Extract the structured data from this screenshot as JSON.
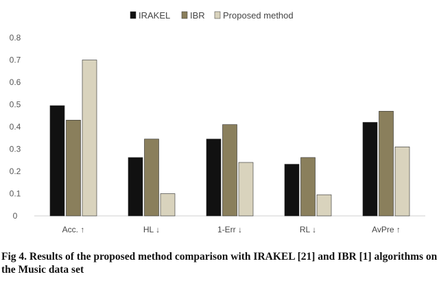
{
  "chart_data": {
    "type": "bar",
    "categories": [
      "Acc. ↑",
      "HL ↓",
      "1-Err ↓",
      "RL ↓",
      "AvPre ↑"
    ],
    "series": [
      {
        "name": "IRAKEL",
        "color": "#111111",
        "values": [
          0.495,
          0.262,
          0.345,
          0.232,
          0.42
        ]
      },
      {
        "name": "IBR",
        "color": "#8a7f5c",
        "values": [
          0.43,
          0.345,
          0.41,
          0.262,
          0.47
        ]
      },
      {
        "name": "Proposed method",
        "color": "#d9d3bd",
        "values": [
          0.7,
          0.1,
          0.24,
          0.095,
          0.31
        ]
      }
    ],
    "ylim": [
      0,
      0.8
    ],
    "yticks": [
      "0",
      "0.1",
      "0.2",
      "0.3",
      "0.4",
      "0.5",
      "0.6",
      "0.7",
      "0.8"
    ],
    "grid": false,
    "legend_position": "top-center"
  },
  "caption": "Fig 4.   Results of the proposed method comparison with IRAKEL [21] and IBR [1] algorithms on the Music data set"
}
